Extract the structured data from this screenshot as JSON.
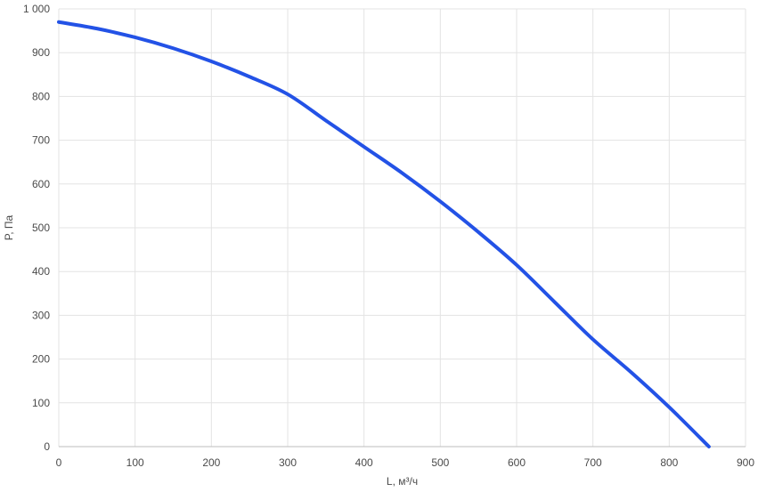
{
  "chart_data": {
    "type": "line",
    "title": "",
    "xlabel": "L, м³/ч",
    "ylabel": "P, Па",
    "xlim": [
      0,
      900
    ],
    "ylim": [
      0,
      1000
    ],
    "x_ticks": [
      0,
      100,
      200,
      300,
      400,
      500,
      600,
      700,
      800,
      900
    ],
    "x_tick_labels": [
      "0",
      "100",
      "200",
      "300",
      "400",
      "500",
      "600",
      "700",
      "800",
      "900"
    ],
    "y_ticks": [
      0,
      100,
      200,
      300,
      400,
      500,
      600,
      700,
      800,
      900,
      1000
    ],
    "y_tick_labels": [
      "0",
      "100",
      "200",
      "300",
      "400",
      "500",
      "600",
      "700",
      "800",
      "900",
      "1 000"
    ],
    "grid": true,
    "series": [
      {
        "color": "#2352e6",
        "points": [
          [
            0,
            970
          ],
          [
            50,
            955
          ],
          [
            100,
            935
          ],
          [
            150,
            910
          ],
          [
            200,
            880
          ],
          [
            250,
            845
          ],
          [
            300,
            805
          ],
          [
            350,
            745
          ],
          [
            400,
            685
          ],
          [
            450,
            625
          ],
          [
            500,
            560
          ],
          [
            550,
            490
          ],
          [
            600,
            415
          ],
          [
            650,
            330
          ],
          [
            700,
            245
          ],
          [
            750,
            170
          ],
          [
            800,
            90
          ],
          [
            852,
            0
          ]
        ]
      }
    ]
  }
}
